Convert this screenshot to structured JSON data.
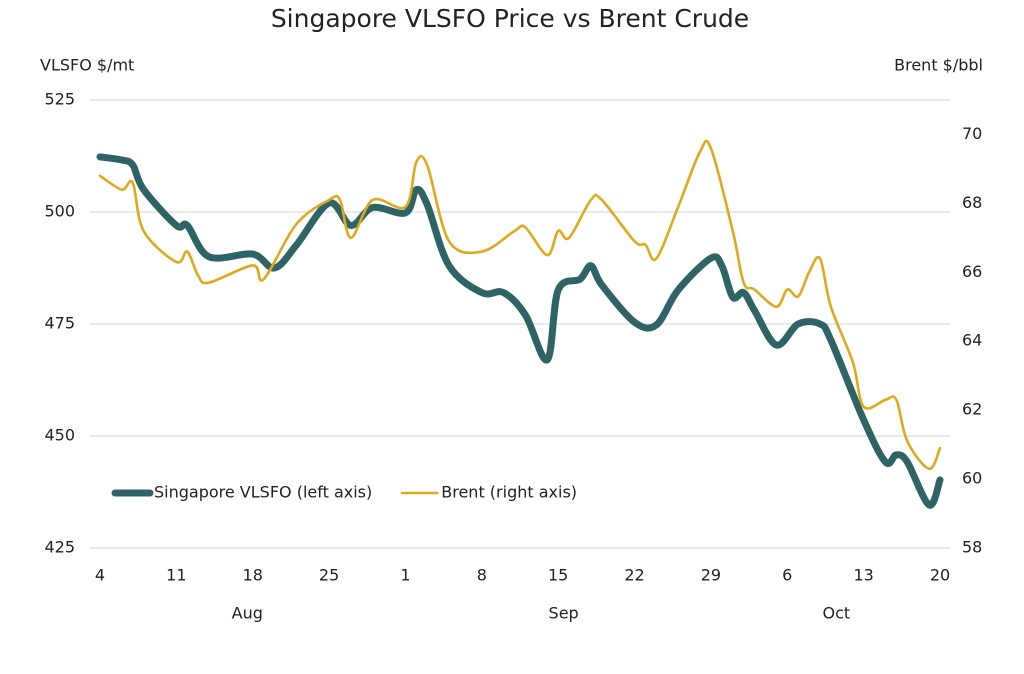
{
  "chart_data": {
    "type": "line",
    "title": "Singapore VLSFO Price vs Brent Crude",
    "y_label": "VLSFO $/mt",
    "y2_label": "Brent $/bbl",
    "xlim": [
      "08-04",
      "10-20"
    ],
    "xticks": [
      {
        "value": "08-04",
        "label": "4"
      },
      {
        "value": "08-11",
        "label": "11"
      },
      {
        "value": "08-18",
        "label": "18"
      },
      {
        "value": "08-25",
        "label": "25"
      },
      {
        "value": "09-01",
        "label": "1"
      },
      {
        "value": "09-08",
        "label": "8"
      },
      {
        "value": "09-15",
        "label": "15"
      },
      {
        "value": "09-22",
        "label": "22"
      },
      {
        "value": "09-29",
        "label": "29"
      },
      {
        "value": "10-06",
        "label": "6"
      },
      {
        "value": "10-13",
        "label": "13"
      },
      {
        "value": "10-20",
        "label": "20"
      }
    ],
    "months": [
      {
        "value": "08",
        "label": "Aug"
      },
      {
        "value": "09",
        "label": "Sep"
      },
      {
        "value": "10",
        "label": "Oct"
      }
    ],
    "ylim": [
      425,
      525
    ],
    "yticks": [
      425,
      450,
      475,
      500,
      525
    ],
    "y2lim": [
      58,
      71
    ],
    "y2ticks": [
      58,
      60,
      62,
      64,
      66,
      68,
      70
    ],
    "grid": true,
    "legend": "lower left",
    "series": [
      {
        "name": "Singapore VLSFO (left axis)",
        "color": "#2e6466",
        "axis": "y",
        "x": [
          "08-04",
          "08-06",
          "08-07",
          "08-08",
          "08-11",
          "08-12",
          "08-14",
          "08-18",
          "08-20",
          "08-22",
          "08-25",
          "08-27",
          "08-29",
          "09-01",
          "09-02",
          "09-03",
          "09-05",
          "09-08",
          "09-10",
          "09-12",
          "09-14",
          "09-15",
          "09-17",
          "09-18",
          "09-19",
          "09-22",
          "09-24",
          "09-26",
          "09-29",
          "09-30",
          "10-01",
          "10-02",
          "10-03",
          "10-05",
          "10-07",
          "10-09",
          "10-10",
          "10-13",
          "10-15",
          "10-16",
          "10-17",
          "10-19",
          "10-20"
        ],
        "values": [
          512.3,
          511.6,
          510.5,
          505,
          497,
          497,
          490,
          490.6,
          487.5,
          492.6,
          502,
          497,
          501,
          499.8,
          505,
          501.6,
          488,
          482,
          482,
          477,
          467,
          482.6,
          485,
          488,
          483.7,
          475.4,
          474.8,
          482.6,
          489.7,
          488,
          481,
          482,
          478,
          470.3,
          475,
          475,
          471.4,
          453.6,
          444.2,
          445.8,
          444.2,
          434.6,
          440.2
        ]
      },
      {
        "name": "Brent (right axis)",
        "color": "#e0a81c",
        "axis": "y2",
        "x": [
          "08-04",
          "08-06",
          "08-07",
          "08-08",
          "08-11",
          "08-12",
          "08-13",
          "08-14",
          "08-18",
          "08-19",
          "08-22",
          "08-25",
          "08-26",
          "08-27",
          "08-29",
          "09-01",
          "09-02",
          "09-03",
          "09-05",
          "09-08",
          "09-11",
          "09-12",
          "09-14",
          "09-15",
          "09-16",
          "09-18",
          "09-19",
          "09-22",
          "09-23",
          "09-24",
          "09-26",
          "09-28",
          "09-29",
          "10-01",
          "10-02",
          "10-03",
          "10-05",
          "10-06",
          "10-07",
          "10-08",
          "10-09",
          "10-10",
          "10-12",
          "10-13",
          "10-15",
          "10-16",
          "10-17",
          "10-19",
          "10-20"
        ],
        "values": [
          68.8,
          68.4,
          68.6,
          67.2,
          66.3,
          66.6,
          65.9,
          65.7,
          66.2,
          65.8,
          67.4,
          68.1,
          68.1,
          67.0,
          68.1,
          67.9,
          69.2,
          69.1,
          66.9,
          66.6,
          67.2,
          67.3,
          66.5,
          67.2,
          67.0,
          68.1,
          68.1,
          66.9,
          66.8,
          66.4,
          67.9,
          69.5,
          69.6,
          67.2,
          65.7,
          65.5,
          65.0,
          65.5,
          65.3,
          66.0,
          66.4,
          65.0,
          63.4,
          62.1,
          62.3,
          62.3,
          61.1,
          60.3,
          60.9
        ]
      }
    ]
  }
}
